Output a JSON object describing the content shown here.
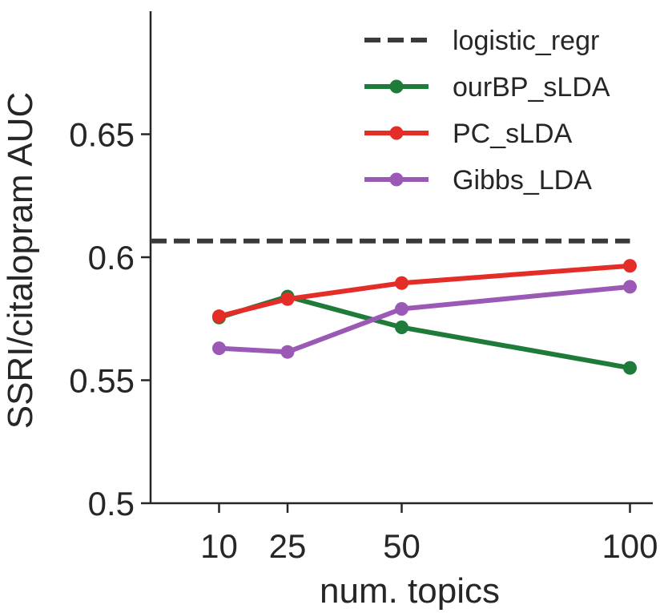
{
  "chart_data": {
    "type": "line",
    "title": "",
    "xlabel": "num. topics",
    "ylabel": "SSRI/citalopram AUC",
    "x": [
      10,
      25,
      50,
      100
    ],
    "x_tick_labels": [
      "10",
      "25",
      "50",
      "100"
    ],
    "xlim": [
      -5,
      105
    ],
    "ylim": [
      0.5,
      0.7
    ],
    "y_ticks": [
      0.5,
      0.55,
      0.6,
      0.65
    ],
    "y_tick_labels": [
      "0.5",
      "0.55",
      "0.6",
      "0.65"
    ],
    "grid": false,
    "legend_position": "top-right",
    "baseline": {
      "name": "logistic_regr",
      "value": 0.6066,
      "x_range": [
        -5,
        100
      ],
      "color": "#3a3a3a",
      "style": "dashed"
    },
    "series": [
      {
        "name": "ourBP_sLDA",
        "color": "#1e7b3a",
        "values": [
          0.5755,
          0.584,
          0.5715,
          0.555
        ]
      },
      {
        "name": "PC_sLDA",
        "color": "#e32d26",
        "values": [
          0.576,
          0.583,
          0.5895,
          0.5965
        ]
      },
      {
        "name": "Gibbs_LDA",
        "color": "#9b59b6",
        "values": [
          0.563,
          0.5615,
          0.579,
          0.588
        ]
      }
    ]
  }
}
